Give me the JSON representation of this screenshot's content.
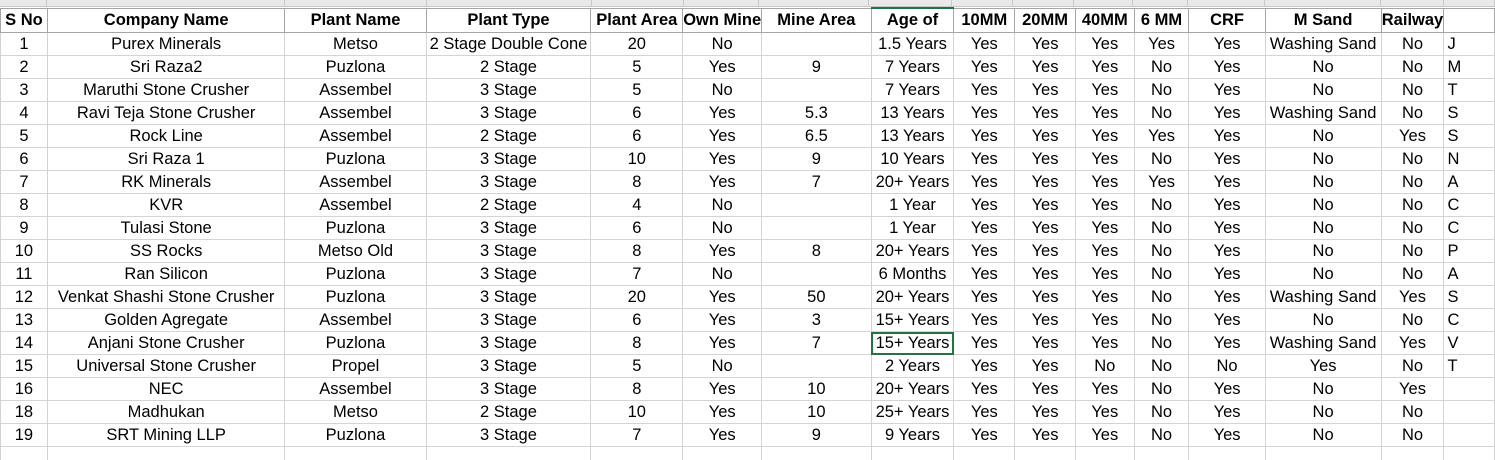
{
  "columns": [
    {
      "key": "sno",
      "label": "S No"
    },
    {
      "key": "company",
      "label": "Company Name"
    },
    {
      "key": "plant",
      "label": "Plant Name"
    },
    {
      "key": "type",
      "label": "Plant Type"
    },
    {
      "key": "area",
      "label": "Plant Area"
    },
    {
      "key": "ownmine",
      "label": "Own Mine"
    },
    {
      "key": "minearea",
      "label": "Mine Area"
    },
    {
      "key": "age",
      "label": "Age of"
    },
    {
      "key": "mm10",
      "label": "10MM"
    },
    {
      "key": "mm20",
      "label": "20MM"
    },
    {
      "key": "mm40",
      "label": "40MM"
    },
    {
      "key": "mm6",
      "label": "6 MM"
    },
    {
      "key": "crf",
      "label": "CRF"
    },
    {
      "key": "msand",
      "label": "M Sand"
    },
    {
      "key": "railway",
      "label": "Railway"
    },
    {
      "key": "extra",
      "label": ""
    }
  ],
  "rows": [
    [
      "1",
      "Purex Minerals",
      "Metso",
      "2 Stage Double Cone",
      "20",
      "No",
      "",
      "1.5 Years",
      "Yes",
      "Yes",
      "Yes",
      "Yes",
      "Yes",
      "Washing Sand",
      "No",
      "J"
    ],
    [
      "2",
      "Sri Raza2",
      "Puzlona",
      "2 Stage",
      "5",
      "Yes",
      "9",
      "7  Years",
      "Yes",
      "Yes",
      "Yes",
      "No",
      "Yes",
      "No",
      "No",
      "M"
    ],
    [
      "3",
      "Maruthi Stone Crusher",
      "Assembel",
      "3 Stage",
      "5",
      "No",
      "",
      "7  Years",
      "Yes",
      "Yes",
      "Yes",
      "No",
      "Yes",
      "No",
      "No",
      "T"
    ],
    [
      "4",
      "Ravi Teja Stone Crusher",
      "Assembel",
      "3 Stage",
      "6",
      "Yes",
      "5.3",
      "13 Years",
      "Yes",
      "Yes",
      "Yes",
      "No",
      "Yes",
      "Washing Sand",
      "No",
      "S"
    ],
    [
      "5",
      "Rock Line",
      "Assembel",
      "2 Stage",
      "6",
      "Yes",
      "6.5",
      "13 Years",
      "Yes",
      "Yes",
      "Yes",
      "Yes",
      "Yes",
      "No",
      "Yes",
      "S"
    ],
    [
      "6",
      "Sri Raza 1",
      "Puzlona",
      "3 Stage",
      "10",
      "Yes",
      "9",
      "10 Years",
      "Yes",
      "Yes",
      "Yes",
      "No",
      "Yes",
      "No",
      "No",
      "N"
    ],
    [
      "7",
      "RK Minerals",
      "Assembel",
      "3 Stage",
      "8",
      "Yes",
      "7",
      "20+ Years",
      "Yes",
      "Yes",
      "Yes",
      "Yes",
      "Yes",
      "No",
      "No",
      "A"
    ],
    [
      "8",
      "KVR",
      "Assembel",
      "2 Stage",
      "4",
      "No",
      "",
      "1 Year",
      "Yes",
      "Yes",
      "Yes",
      "No",
      "Yes",
      "No",
      "No",
      "C"
    ],
    [
      "9",
      "Tulasi Stone",
      "Puzlona",
      "3 Stage",
      "6",
      "No",
      "",
      "1 Year",
      "Yes",
      "Yes",
      "Yes",
      "No",
      "Yes",
      "No",
      "No",
      "C"
    ],
    [
      "10",
      "SS Rocks",
      "Metso Old",
      "3 Stage",
      "8",
      "Yes",
      "8",
      "20+ Years",
      "Yes",
      "Yes",
      "Yes",
      "No",
      "Yes",
      "No",
      "No",
      "P"
    ],
    [
      "11",
      "Ran Silicon",
      "Puzlona",
      "3 Stage",
      "7",
      "No",
      "",
      "6 Months",
      "Yes",
      "Yes",
      "Yes",
      "No",
      "Yes",
      "No",
      "No",
      "A"
    ],
    [
      "12",
      "Venkat Shashi Stone Crusher",
      "Puzlona",
      "3 Stage",
      "20",
      "Yes",
      "50",
      "20+ Years",
      "Yes",
      "Yes",
      "Yes",
      "No",
      "Yes",
      "Washing Sand",
      "Yes",
      "S"
    ],
    [
      "13",
      "Golden Agregate",
      "Assembel",
      "3 Stage",
      "6",
      "Yes",
      "3",
      "15+ Years",
      "Yes",
      "Yes",
      "Yes",
      "No",
      "Yes",
      "No",
      "No",
      "C"
    ],
    [
      "14",
      "Anjani Stone Crusher",
      "Puzlona",
      "3 Stage",
      "8",
      "Yes",
      "7",
      "15+ Years",
      "Yes",
      "Yes",
      "Yes",
      "No",
      "Yes",
      "Washing Sand",
      "Yes",
      "V"
    ],
    [
      "15",
      "Universal Stone Crusher",
      "Propel",
      "3 Stage",
      "5",
      "No",
      "",
      "2 Years",
      "Yes",
      "Yes",
      "No",
      "No",
      "No",
      "Yes",
      "No",
      "T"
    ],
    [
      "16",
      "NEC",
      "Assembel",
      "3 Stage",
      "8",
      "Yes",
      "10",
      "20+ Years",
      "Yes",
      "Yes",
      "Yes",
      "No",
      "Yes",
      "No",
      "Yes",
      ""
    ],
    [
      "18",
      "Madhukan",
      "Metso",
      "2 Stage",
      "10",
      "Yes",
      "10",
      "25+ Years",
      "Yes",
      "Yes",
      "Yes",
      "No",
      "Yes",
      "No",
      "No",
      ""
    ],
    [
      "19",
      "SRT Mining LLP",
      "Puzlona",
      "3 Stage",
      "7",
      "Yes",
      "9",
      "9 Years",
      "Yes",
      "Yes",
      "Yes",
      "No",
      "Yes",
      "No",
      "No",
      ""
    ]
  ],
  "selection": {
    "row": 13,
    "col": 7
  }
}
